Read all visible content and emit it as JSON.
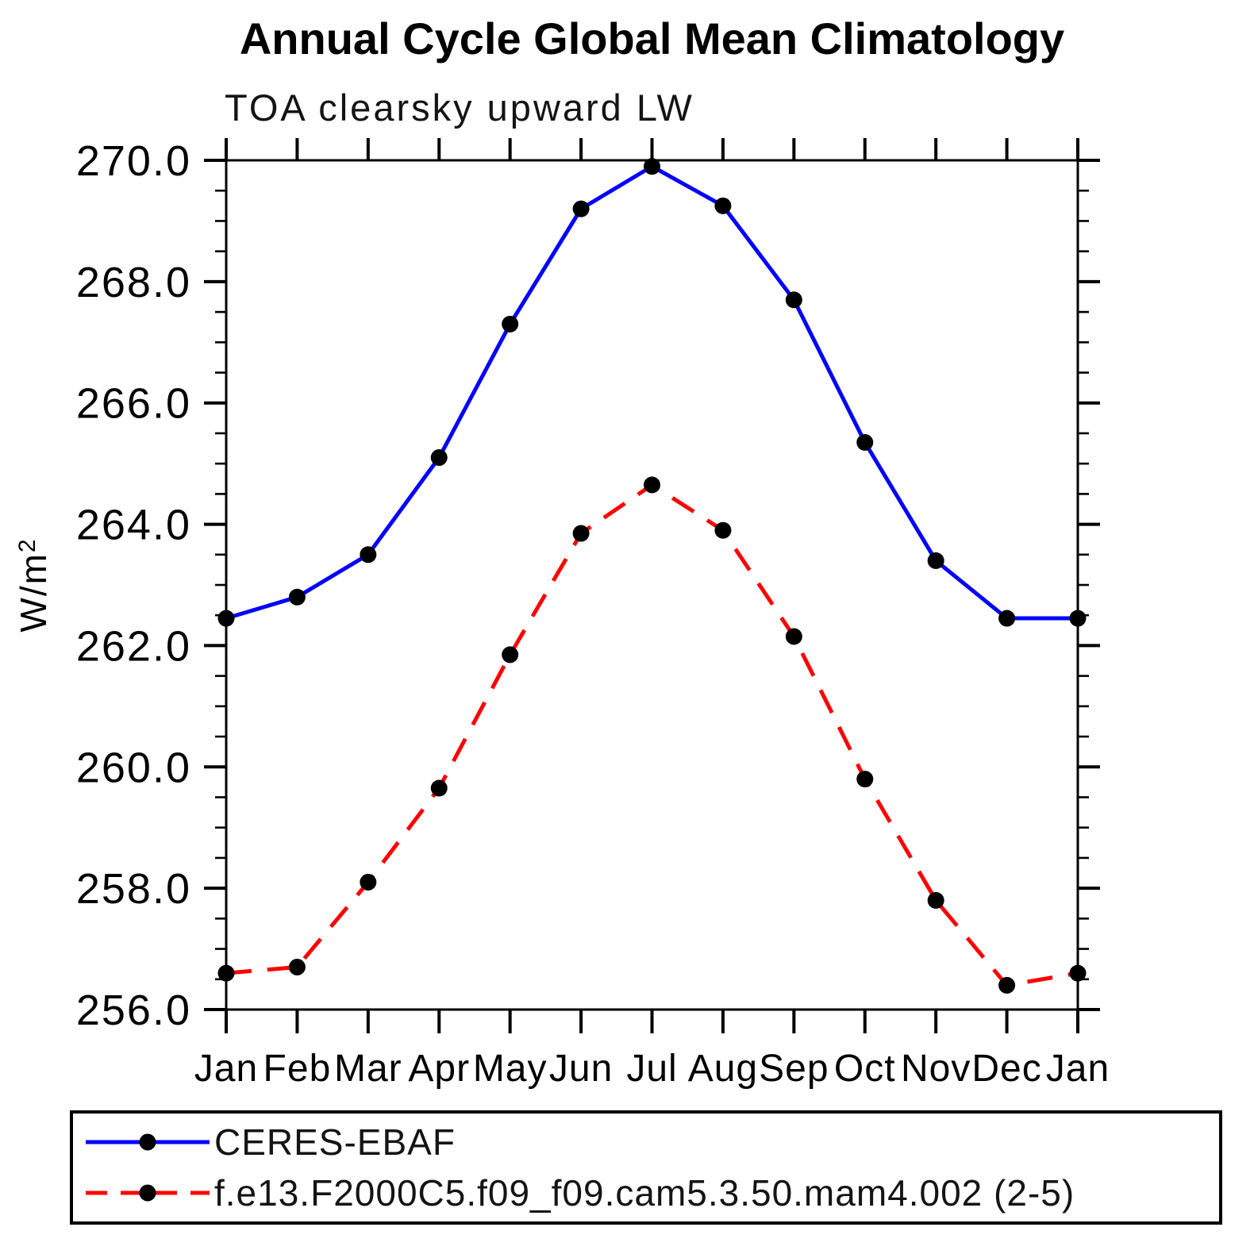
{
  "page": {
    "background": "#ffffff"
  },
  "chart_data": {
    "type": "line",
    "title": "Annual Cycle Global Mean Climatology",
    "subtitle": "TOA clearsky upward LW",
    "ylabel": "W/m²",
    "ylabel_base": "W/m",
    "ylabel_exponent": "2",
    "xlabel": "",
    "categories": [
      "Jan",
      "Feb",
      "Mar",
      "Apr",
      "May",
      "Jun",
      "Jul",
      "Aug",
      "Sep",
      "Oct",
      "Nov",
      "Dec",
      "Jan"
    ],
    "ylim": [
      256.0,
      270.0
    ],
    "ytick_major_interval": 2.0,
    "ytick_minor_interval": 0.5,
    "ytick_labels": [
      "256.0",
      "258.0",
      "260.0",
      "262.0",
      "264.0",
      "266.0",
      "268.0",
      "270.0"
    ],
    "grid": "off",
    "frame": "box-with-outward-ticks",
    "legend_position": "bottom",
    "axis_color": "#000000",
    "marker_color": "#000000",
    "series": [
      {
        "name": "CERES-EBAF",
        "line_color": "#0000ff",
        "line_style": "solid",
        "marker": "filled-circle",
        "values": [
          262.45,
          262.8,
          263.5,
          265.1,
          267.3,
          269.2,
          269.9,
          269.25,
          267.7,
          265.35,
          263.4,
          262.45,
          262.45
        ]
      },
      {
        "name": "f.e13.F2000C5.f09_f09.cam5.3.50.mam4.002 (2-5)",
        "line_color": "#ff0000",
        "line_style": "dashed",
        "marker": "filled-circle",
        "values": [
          256.6,
          256.7,
          258.1,
          259.65,
          261.85,
          263.85,
          264.65,
          263.9,
          262.15,
          259.8,
          257.8,
          256.4,
          256.6
        ]
      }
    ]
  }
}
